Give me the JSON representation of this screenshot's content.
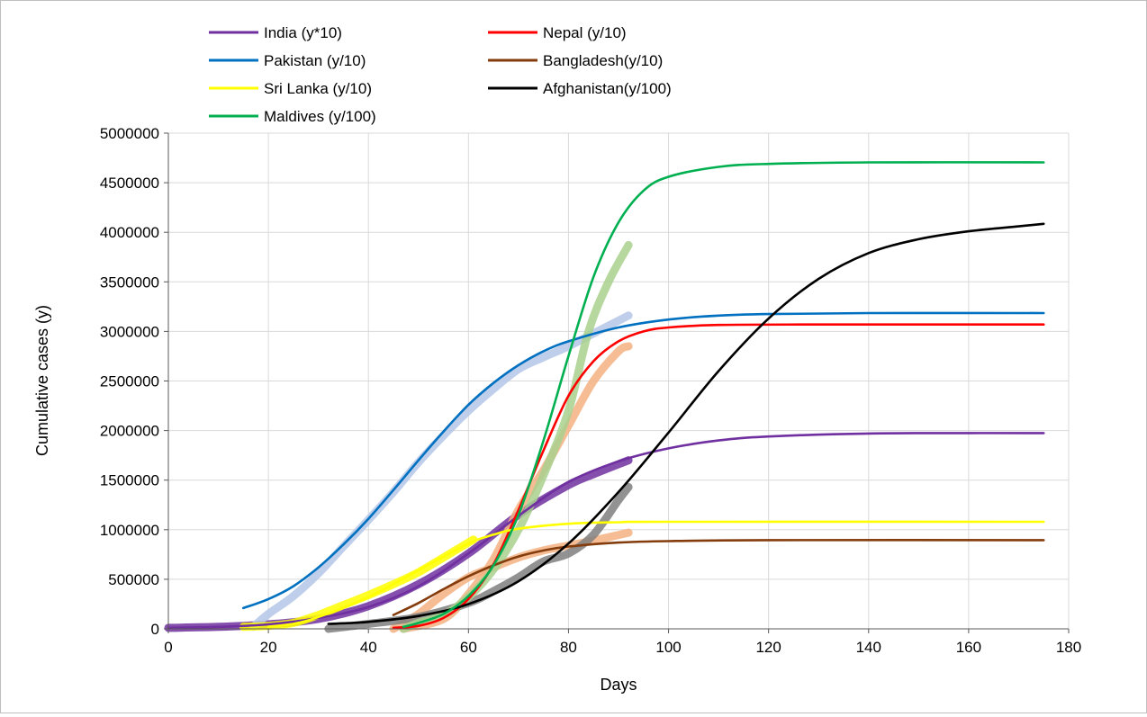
{
  "chart_data": {
    "type": "line",
    "title": "",
    "xlabel": "Days",
    "ylabel": "Cumulative cases (y)",
    "xlim": [
      0,
      180
    ],
    "ylim": [
      0,
      5000000
    ],
    "x_ticks": [
      "0",
      "20",
      "40",
      "60",
      "80",
      "100",
      "120",
      "140",
      "160",
      "180"
    ],
    "y_ticks": [
      "0",
      "500000",
      "1000000",
      "1500000",
      "2000000",
      "2500000",
      "3000000",
      "3500000",
      "4000000",
      "4500000",
      "5000000"
    ],
    "grid": true,
    "legend_position": "top",
    "series": [
      {
        "name": "India (y*10)",
        "color": "#7030a0",
        "obs_color": "#7030a0",
        "fit": [
          [
            0,
            10000
          ],
          [
            10,
            20000
          ],
          [
            20,
            45000
          ],
          [
            30,
            110000
          ],
          [
            40,
            220000
          ],
          [
            50,
            430000
          ],
          [
            60,
            760000
          ],
          [
            70,
            1140000
          ],
          [
            80,
            1480000
          ],
          [
            90,
            1690000
          ],
          [
            100,
            1820000
          ],
          [
            110,
            1900000
          ],
          [
            120,
            1940000
          ],
          [
            140,
            1970000
          ],
          [
            160,
            1975000
          ],
          [
            175,
            1975000
          ]
        ],
        "observed": [
          [
            0,
            10000
          ],
          [
            10,
            20000
          ],
          [
            20,
            45000
          ],
          [
            30,
            100000
          ],
          [
            40,
            230000
          ],
          [
            50,
            450000
          ],
          [
            60,
            760000
          ],
          [
            70,
            1150000
          ],
          [
            80,
            1450000
          ],
          [
            85,
            1560000
          ],
          [
            92,
            1700000
          ]
        ]
      },
      {
        "name": "Nepal (y/10)",
        "color": "#ff0000",
        "obs_color": "#f4b183",
        "fit": [
          [
            45,
            10000
          ],
          [
            50,
            30000
          ],
          [
            55,
            110000
          ],
          [
            60,
            300000
          ],
          [
            65,
            650000
          ],
          [
            70,
            1200000
          ],
          [
            75,
            1800000
          ],
          [
            80,
            2350000
          ],
          [
            85,
            2700000
          ],
          [
            90,
            2900000
          ],
          [
            95,
            3000000
          ],
          [
            100,
            3040000
          ],
          [
            110,
            3065000
          ],
          [
            130,
            3070000
          ],
          [
            175,
            3070000
          ]
        ],
        "observed": [
          [
            47,
            0
          ],
          [
            55,
            100000
          ],
          [
            60,
            350000
          ],
          [
            65,
            700000
          ],
          [
            70,
            1200000
          ],
          [
            75,
            1600000
          ],
          [
            80,
            2050000
          ],
          [
            85,
            2500000
          ],
          [
            90,
            2800000
          ],
          [
            92,
            2850000
          ]
        ]
      },
      {
        "name": "Pakistan (y/10)",
        "color": "#0070c0",
        "obs_color": "#b4c7e7",
        "fit": [
          [
            15,
            210000
          ],
          [
            20,
            300000
          ],
          [
            25,
            430000
          ],
          [
            30,
            620000
          ],
          [
            35,
            850000
          ],
          [
            40,
            1110000
          ],
          [
            45,
            1400000
          ],
          [
            50,
            1700000
          ],
          [
            55,
            1990000
          ],
          [
            60,
            2260000
          ],
          [
            65,
            2480000
          ],
          [
            70,
            2660000
          ],
          [
            75,
            2800000
          ],
          [
            80,
            2900000
          ],
          [
            90,
            3040000
          ],
          [
            100,
            3120000
          ],
          [
            110,
            3160000
          ],
          [
            120,
            3175000
          ],
          [
            140,
            3185000
          ],
          [
            175,
            3185000
          ]
        ],
        "observed": [
          [
            17,
            20000
          ],
          [
            20,
            150000
          ],
          [
            25,
            330000
          ],
          [
            30,
            560000
          ],
          [
            35,
            830000
          ],
          [
            40,
            1100000
          ],
          [
            45,
            1380000
          ],
          [
            50,
            1680000
          ],
          [
            55,
            1950000
          ],
          [
            60,
            2200000
          ],
          [
            65,
            2420000
          ],
          [
            70,
            2620000
          ],
          [
            75,
            2740000
          ],
          [
            80,
            2850000
          ],
          [
            85,
            2980000
          ],
          [
            92,
            3160000
          ]
        ]
      },
      {
        "name": "Bangladesh(y/10)",
        "color": "#843c0c",
        "obs_color": "#f4b183",
        "fit": [
          [
            45,
            140000
          ],
          [
            50,
            260000
          ],
          [
            55,
            400000
          ],
          [
            60,
            530000
          ],
          [
            65,
            640000
          ],
          [
            70,
            730000
          ],
          [
            75,
            790000
          ],
          [
            80,
            830000
          ],
          [
            90,
            870000
          ],
          [
            100,
            885000
          ],
          [
            120,
            895000
          ],
          [
            175,
            895000
          ]
        ],
        "observed": [
          [
            45,
            0
          ],
          [
            50,
            150000
          ],
          [
            55,
            350000
          ],
          [
            60,
            520000
          ],
          [
            65,
            620000
          ],
          [
            70,
            720000
          ],
          [
            75,
            790000
          ],
          [
            80,
            840000
          ],
          [
            85,
            890000
          ],
          [
            92,
            970000
          ]
        ]
      },
      {
        "name": "Sri Lanka (y/10)",
        "color": "#ffff00",
        "obs_color": "#ffff00",
        "fit": [
          [
            20,
            20000
          ],
          [
            25,
            50000
          ],
          [
            30,
            120000
          ],
          [
            40,
            320000
          ],
          [
            50,
            590000
          ],
          [
            60,
            860000
          ],
          [
            65,
            950000
          ],
          [
            70,
            1010000
          ],
          [
            80,
            1060000
          ],
          [
            90,
            1075000
          ],
          [
            100,
            1080000
          ],
          [
            175,
            1080000
          ]
        ],
        "observed": [
          [
            15,
            20000
          ],
          [
            20,
            30000
          ],
          [
            25,
            60000
          ],
          [
            30,
            140000
          ],
          [
            35,
            240000
          ],
          [
            40,
            340000
          ],
          [
            45,
            450000
          ],
          [
            50,
            570000
          ],
          [
            55,
            720000
          ],
          [
            61,
            900000
          ]
        ]
      },
      {
        "name": "Afghanistan(y/100)",
        "color": "#000000",
        "obs_color": "#7f7f7f",
        "fit": [
          [
            32,
            50000
          ],
          [
            40,
            70000
          ],
          [
            50,
            130000
          ],
          [
            60,
            250000
          ],
          [
            70,
            480000
          ],
          [
            80,
            860000
          ],
          [
            90,
            1380000
          ],
          [
            100,
            1980000
          ],
          [
            110,
            2600000
          ],
          [
            120,
            3130000
          ],
          [
            130,
            3530000
          ],
          [
            140,
            3790000
          ],
          [
            150,
            3930000
          ],
          [
            160,
            4010000
          ],
          [
            170,
            4060000
          ],
          [
            175,
            4085000
          ]
        ],
        "observed": [
          [
            32,
            0
          ],
          [
            40,
            50000
          ],
          [
            50,
            120000
          ],
          [
            60,
            260000
          ],
          [
            65,
            380000
          ],
          [
            70,
            520000
          ],
          [
            75,
            680000
          ],
          [
            80,
            760000
          ],
          [
            85,
            950000
          ],
          [
            90,
            1300000
          ],
          [
            92,
            1430000
          ]
        ]
      },
      {
        "name": "Maldives (y/100)",
        "color": "#00b050",
        "obs_color": "#a9d18e",
        "fit": [
          [
            47,
            20000
          ],
          [
            50,
            60000
          ],
          [
            55,
            150000
          ],
          [
            60,
            330000
          ],
          [
            65,
            640000
          ],
          [
            70,
            1150000
          ],
          [
            75,
            1900000
          ],
          [
            80,
            2750000
          ],
          [
            85,
            3550000
          ],
          [
            90,
            4100000
          ],
          [
            95,
            4420000
          ],
          [
            100,
            4560000
          ],
          [
            110,
            4660000
          ],
          [
            120,
            4690000
          ],
          [
            140,
            4705000
          ],
          [
            175,
            4705000
          ]
        ],
        "observed": [
          [
            47,
            0
          ],
          [
            50,
            60000
          ],
          [
            55,
            140000
          ],
          [
            60,
            320000
          ],
          [
            65,
            600000
          ],
          [
            70,
            1000000
          ],
          [
            75,
            1550000
          ],
          [
            80,
            2200000
          ],
          [
            84,
            3000000
          ],
          [
            88,
            3500000
          ],
          [
            92,
            3870000
          ]
        ]
      }
    ]
  }
}
